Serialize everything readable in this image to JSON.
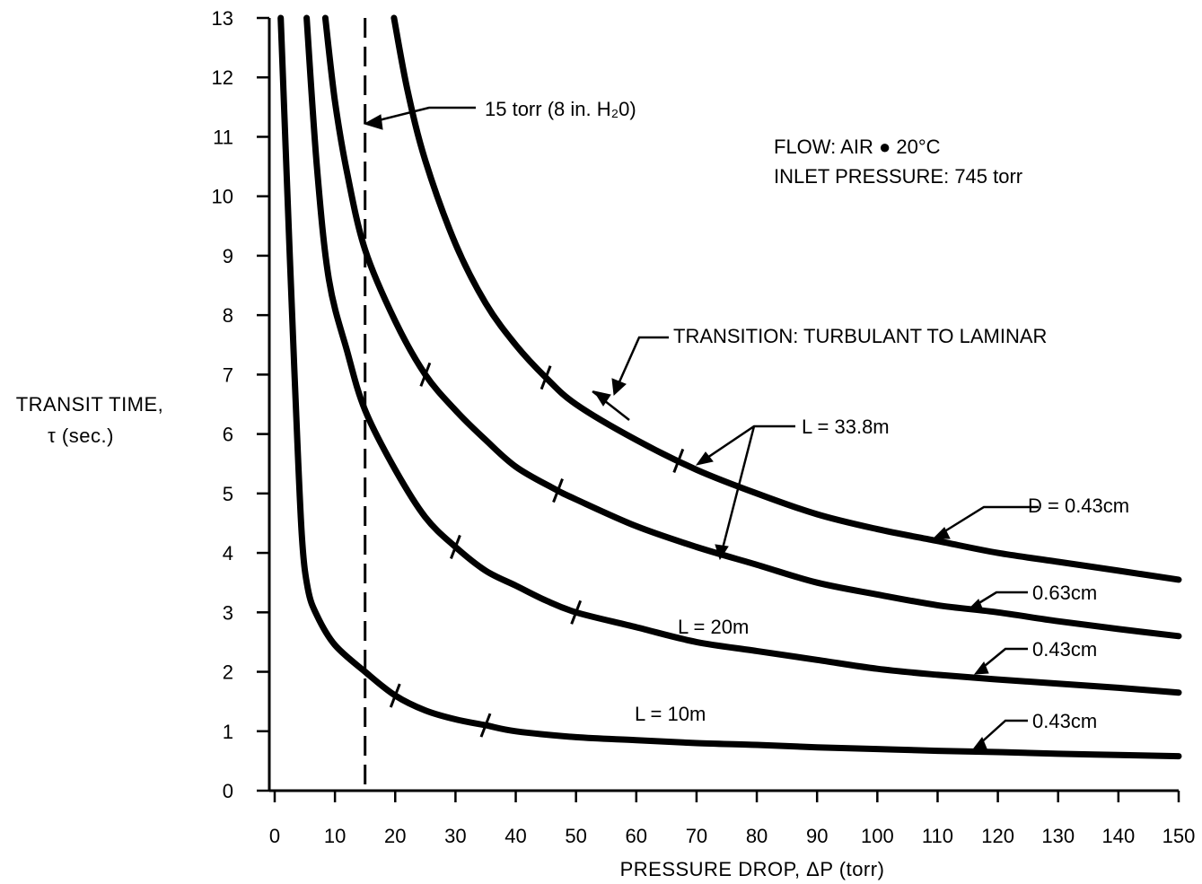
{
  "chart_data": {
    "type": "line",
    "xlabel": "PRESSURE DROP, ΔP (torr)",
    "ylabel_line1": "TRANSIT TIME,",
    "ylabel_line2": "τ (sec.)",
    "xlim": [
      0,
      150
    ],
    "ylim": [
      0,
      13
    ],
    "x_ticks": [
      0,
      10,
      20,
      30,
      40,
      50,
      60,
      70,
      80,
      90,
      100,
      110,
      120,
      130,
      140,
      150
    ],
    "y_ticks": [
      0,
      1,
      2,
      3,
      4,
      5,
      6,
      7,
      8,
      9,
      10,
      11,
      12,
      13
    ],
    "grid": false,
    "series": [
      {
        "name": "L = 33.8m, D = 0.43cm",
        "points": [
          [
            19.8,
            13
          ],
          [
            22,
            11.8
          ],
          [
            25,
            10.6
          ],
          [
            30,
            9.2
          ],
          [
            35,
            8.2
          ],
          [
            40,
            7.5
          ],
          [
            45,
            6.95
          ],
          [
            50,
            6.5
          ],
          [
            60,
            5.9
          ],
          [
            70,
            5.4
          ],
          [
            80,
            5.0
          ],
          [
            90,
            4.65
          ],
          [
            100,
            4.4
          ],
          [
            110,
            4.2
          ],
          [
            120,
            4.0
          ],
          [
            130,
            3.85
          ],
          [
            140,
            3.7
          ],
          [
            150,
            3.55
          ]
        ],
        "transition_x": [
          45,
          67
        ]
      },
      {
        "name": "L = 33.8m, D = 0.63cm",
        "points": [
          [
            8.4,
            13
          ],
          [
            10,
            11.6
          ],
          [
            12,
            10.4
          ],
          [
            15,
            9.1
          ],
          [
            20,
            7.9
          ],
          [
            25,
            7.0
          ],
          [
            30,
            6.4
          ],
          [
            35,
            5.9
          ],
          [
            40,
            5.45
          ],
          [
            46,
            5.1
          ],
          [
            50,
            4.9
          ],
          [
            60,
            4.45
          ],
          [
            70,
            4.1
          ],
          [
            80,
            3.8
          ],
          [
            90,
            3.5
          ],
          [
            100,
            3.3
          ],
          [
            110,
            3.12
          ],
          [
            120,
            3.0
          ],
          [
            130,
            2.85
          ],
          [
            140,
            2.72
          ],
          [
            150,
            2.6
          ]
        ],
        "transition_x": [
          25,
          47
        ]
      },
      {
        "name": "L = 20m, D = 0.43cm",
        "points": [
          [
            5.3,
            13
          ],
          [
            7,
            10.5
          ],
          [
            9,
            8.6
          ],
          [
            12,
            7.4
          ],
          [
            15,
            6.4
          ],
          [
            20,
            5.4
          ],
          [
            25,
            4.6
          ],
          [
            30,
            4.1
          ],
          [
            35,
            3.7
          ],
          [
            40,
            3.45
          ],
          [
            45,
            3.2
          ],
          [
            50,
            3.0
          ],
          [
            60,
            2.75
          ],
          [
            70,
            2.5
          ],
          [
            80,
            2.35
          ],
          [
            90,
            2.2
          ],
          [
            100,
            2.05
          ],
          [
            110,
            1.95
          ],
          [
            120,
            1.87
          ],
          [
            130,
            1.8
          ],
          [
            140,
            1.73
          ],
          [
            150,
            1.65
          ]
        ],
        "transition_x": [
          30,
          50
        ]
      },
      {
        "name": "L = 10m, D = 0.43cm",
        "points": [
          [
            1.0,
            13
          ],
          [
            2.5,
            9
          ],
          [
            3.5,
            6.5
          ],
          [
            4.5,
            4.3
          ],
          [
            5.5,
            3.4
          ],
          [
            7,
            2.95
          ],
          [
            10,
            2.45
          ],
          [
            15,
            2.0
          ],
          [
            20,
            1.6
          ],
          [
            25,
            1.35
          ],
          [
            30,
            1.2
          ],
          [
            35,
            1.1
          ],
          [
            40,
            1.0
          ],
          [
            50,
            0.9
          ],
          [
            60,
            0.85
          ],
          [
            70,
            0.8
          ],
          [
            80,
            0.77
          ],
          [
            90,
            0.73
          ],
          [
            100,
            0.7
          ],
          [
            110,
            0.67
          ],
          [
            120,
            0.65
          ],
          [
            130,
            0.62
          ],
          [
            140,
            0.6
          ],
          [
            150,
            0.58
          ]
        ],
        "transition_x": [
          20,
          35
        ]
      }
    ],
    "vertical_marker": {
      "x": 15,
      "label": "15 torr (8 in. H₂0)"
    },
    "annotations": {
      "flow": "FLOW: AIR ● 20°C",
      "inlet": "INLET PRESSURE: 745 torr",
      "transition": "TRANSITION: TURBULANT TO LAMINAR",
      "l338": "L = 33.8m",
      "l20": "L = 20m",
      "l10": "L = 10m",
      "d_top": "D = 0.43cm",
      "d_063": "0.63cm",
      "d_20": "0.43cm",
      "d_10": "0.43cm"
    }
  }
}
